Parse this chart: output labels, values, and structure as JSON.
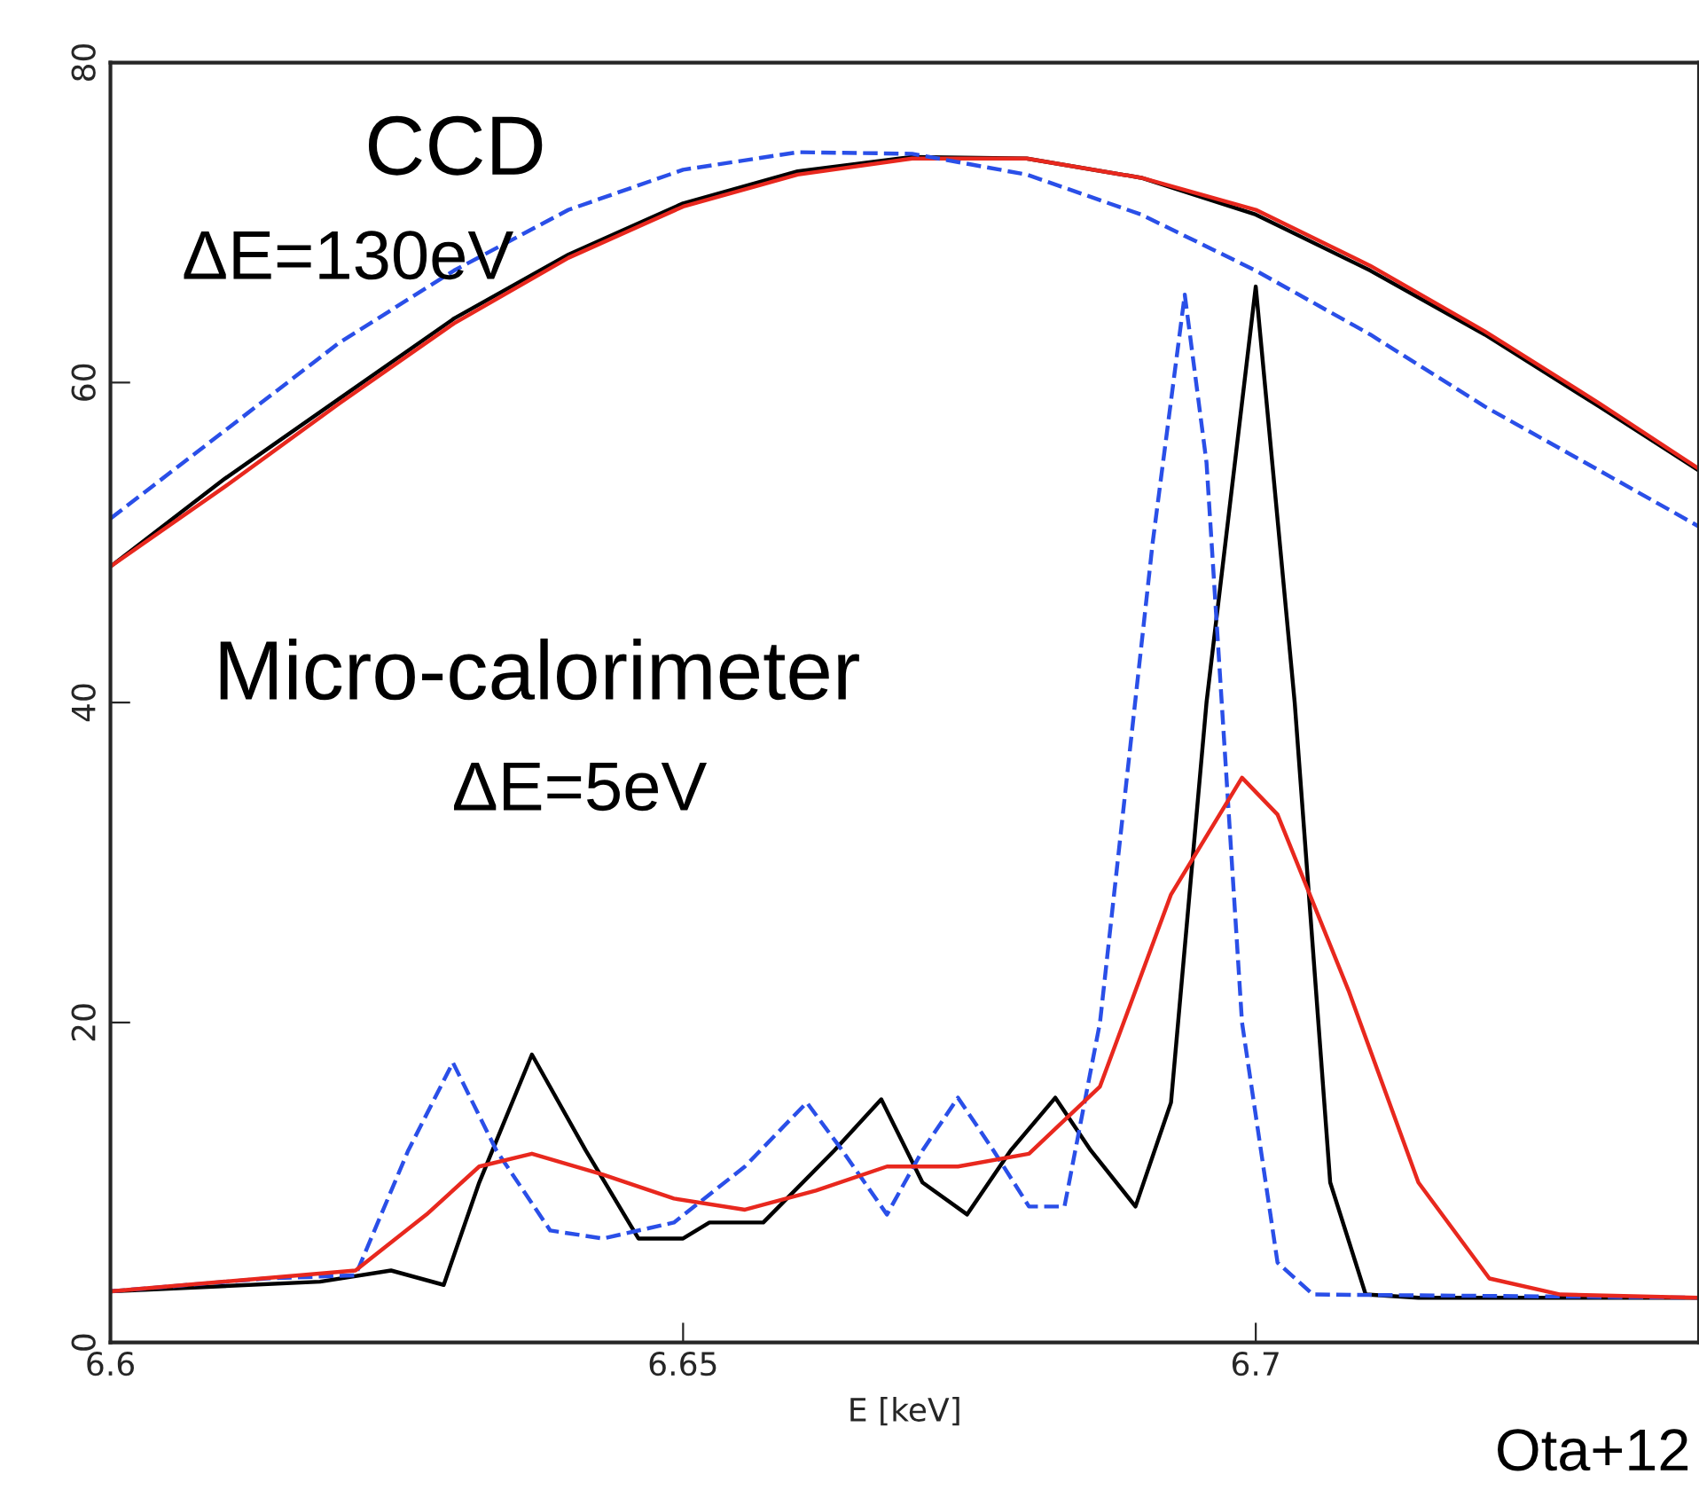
{
  "chart_data": {
    "type": "line",
    "xlabel": "E [keV]",
    "xlim": [
      6.6,
      6.7387
    ],
    "ylim": [
      0,
      80
    ],
    "xticks": [
      6.6,
      6.65,
      6.7
    ],
    "yticks": [
      0,
      20,
      40,
      60,
      80
    ],
    "grid": false,
    "marker": "none",
    "annotations": [
      "CCD",
      "ΔE=130eV",
      "Micro-calorimeter",
      "ΔE=5eV",
      "Ota+12"
    ],
    "series": [
      {
        "color": "#000000",
        "line_style": "solid",
        "x": [
          6.6,
          6.61,
          6.62,
          6.63,
          6.64,
          6.65,
          6.66,
          6.67,
          6.68,
          6.69,
          6.7,
          6.71,
          6.72,
          6.73,
          6.7387
        ],
        "values": [
          48.5,
          54,
          59,
          64,
          68,
          71.2,
          73.2,
          74.1,
          74,
          72.8,
          70.5,
          67,
          63,
          58.5,
          54.5
        ]
      },
      {
        "color": "#e8281e",
        "line_style": "solid",
        "x": [
          6.6,
          6.61,
          6.62,
          6.63,
          6.64,
          6.65,
          6.66,
          6.67,
          6.68,
          6.69,
          6.7,
          6.71,
          6.72,
          6.73,
          6.7387
        ],
        "values": [
          48.5,
          53.5,
          58.7,
          63.7,
          67.8,
          71,
          73,
          74,
          74,
          72.8,
          70.8,
          67.3,
          63.2,
          58.7,
          54.6
        ]
      },
      {
        "color": "#2a4fe8",
        "line_style": "dashed",
        "x": [
          6.6,
          6.61,
          6.62,
          6.63,
          6.64,
          6.65,
          6.66,
          6.67,
          6.68,
          6.69,
          6.7,
          6.71,
          6.72,
          6.73,
          6.7387
        ],
        "values": [
          51.5,
          57,
          62.5,
          67,
          70.8,
          73.3,
          74.4,
          74.3,
          73,
          70.5,
          67,
          63,
          58.5,
          54.5,
          51
        ]
      },
      {
        "color": "#000000",
        "line_style": "solid",
        "x": [
          6.6,
          6.6183,
          6.6245,
          6.6291,
          6.6322,
          6.6368,
          6.6415,
          6.6461,
          6.65,
          6.6523,
          6.657,
          6.6632,
          6.6673,
          6.6709,
          6.6748,
          6.6786,
          6.6825,
          6.6856,
          6.6895,
          6.6926,
          6.6957,
          6.7,
          6.7034,
          6.7065,
          6.7096,
          6.7142,
          6.7387
        ],
        "values": [
          3.2,
          3.8,
          4.5,
          3.6,
          10,
          18,
          12,
          6.5,
          6.5,
          7.5,
          7.5,
          12,
          15.2,
          10,
          8,
          12,
          15.3,
          12,
          8.5,
          15,
          40,
          66,
          40,
          10,
          3,
          2.8,
          2.8
        ]
      },
      {
        "color": "#2a4fe8",
        "line_style": "dashed",
        "x": [
          6.6,
          6.6136,
          6.6214,
          6.626,
          6.6299,
          6.6337,
          6.6384,
          6.643,
          6.6492,
          6.6554,
          6.6608,
          6.6639,
          6.6678,
          6.6709,
          6.674,
          6.6771,
          6.6802,
          6.6833,
          6.6864,
          6.691,
          6.6938,
          6.6957,
          6.6988,
          6.7019,
          6.705,
          6.7387
        ],
        "values": [
          3.2,
          4,
          4.2,
          12,
          17.5,
          12,
          7,
          6.5,
          7.5,
          11,
          15,
          12,
          8,
          12,
          15.3,
          12,
          8.5,
          8.5,
          20,
          50,
          65.5,
          55,
          20,
          5,
          3,
          2.8
        ]
      },
      {
        "color": "#e8281e",
        "line_style": "solid",
        "x": [
          6.6,
          6.6214,
          6.6276,
          6.6322,
          6.6368,
          6.643,
          6.6492,
          6.6554,
          6.6616,
          6.6678,
          6.674,
          6.6802,
          6.6864,
          6.6926,
          6.6988,
          6.7019,
          6.7081,
          6.7142,
          6.7204,
          6.7266,
          6.7387
        ],
        "values": [
          3.2,
          4.5,
          8,
          11,
          11.8,
          10.5,
          9,
          8.3,
          9.5,
          11,
          11,
          11.8,
          16,
          28,
          35.3,
          33,
          22,
          10,
          4,
          3,
          2.8
        ]
      }
    ]
  }
}
